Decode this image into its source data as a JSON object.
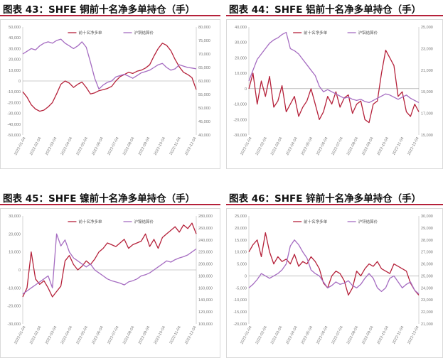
{
  "colors": {
    "net_long": "#b5213a",
    "price": "#a56cc1",
    "accent": "#b5213a"
  },
  "chart_data": [
    {
      "type": "line",
      "title": "图表 43：SHFE 铜前十名净多单持仓（手）",
      "x_ticks": [
        "2022-01-04",
        "2022-02-04",
        "2022-03-04",
        "2022-04-04",
        "2022-05-04",
        "2022-06-04",
        "2022-07-04",
        "2022-08-04",
        "2022-09-04",
        "2022-10-04",
        "2022-11-04",
        "2022-12-04"
      ],
      "y_left_ticks": [
        "50,000",
        "40,000",
        "30,000",
        "20,000",
        "10,000",
        "0",
        "-10,000",
        "-20,000",
        "-30,000",
        "-40,000",
        "-50,000"
      ],
      "y_right_ticks": [
        "80,000",
        "75,000",
        "70,000",
        "65,000",
        "60,000",
        "55,000",
        "50,000",
        "45,000",
        "40,000"
      ],
      "ylim_left": [
        -50000,
        50000
      ],
      "ylim_right": [
        40000,
        80000
      ],
      "legend": [
        "前十名净多单",
        "沪铜结算价"
      ],
      "series": [
        {
          "name": "前十名净多单",
          "axis": "left",
          "values": [
            -10000,
            -15000,
            -22000,
            -26000,
            -28000,
            -27000,
            -24000,
            -20000,
            -12000,
            -3000,
            0,
            -2000,
            -6000,
            -3000,
            -1000,
            -6000,
            -12000,
            -11000,
            -9000,
            -8000,
            -7000,
            -5000,
            0,
            4000,
            6000,
            8000,
            7000,
            9000,
            10000,
            12000,
            15000,
            23000,
            30000,
            35000,
            33000,
            28000,
            20000,
            13000,
            8000,
            6000,
            3000,
            -8000
          ]
        },
        {
          "name": "沪铜结算价",
          "axis": "right",
          "values": [
            70000,
            71000,
            72000,
            71500,
            73000,
            74000,
            74500,
            74000,
            75000,
            75500,
            74000,
            73000,
            72000,
            73000,
            74500,
            72500,
            67000,
            61000,
            57000,
            58500,
            59500,
            60000,
            61500,
            62000,
            62500,
            61800,
            61000,
            62000,
            63000,
            63500,
            64000,
            65000,
            66000,
            66500,
            65000,
            64000,
            64500,
            66000,
            65500,
            65000,
            64800,
            64500
          ]
        }
      ]
    },
    {
      "type": "line",
      "title": "图表 44：SHFE 铝前十名净多单持仓（手）",
      "x_ticks": [
        "2022-01-04",
        "2022-02-04",
        "2022-03-04",
        "2022-04-04",
        "2022-05-04",
        "2022-06-04",
        "2022-07-04",
        "2022-08-04",
        "2022-09-04",
        "2022-10-04",
        "2022-11-04",
        "2022-12-04"
      ],
      "y_left_ticks": [
        "40,000",
        "30,000",
        "20,000",
        "10,000",
        "0",
        "-10,000",
        "-20,000",
        "-30,000"
      ],
      "y_right_ticks": [
        "25,000",
        "23,000",
        "21,000",
        "19,000",
        "17,000",
        "15,000"
      ],
      "ylim_left": [
        -30000,
        40000
      ],
      "ylim_right": [
        15000,
        25000
      ],
      "legend": [
        "前十名净多单",
        "沪铝结算价"
      ],
      "series": [
        {
          "name": "前十名净多单",
          "axis": "left",
          "values": [
            0,
            10000,
            -10000,
            5000,
            -5000,
            8000,
            -12000,
            -8000,
            2000,
            -15000,
            -10000,
            -5000,
            -18000,
            -12000,
            -8000,
            0,
            -10000,
            -20000,
            -15000,
            -5000,
            -10000,
            -2000,
            -12000,
            -6000,
            -4000,
            -16000,
            -10000,
            -8000,
            -20000,
            -22000,
            -10000,
            -8000,
            10000,
            25000,
            20000,
            15000,
            -5000,
            -2000,
            -15000,
            -18000,
            -10000,
            -15000
          ]
        },
        {
          "name": "沪铝结算价",
          "axis": "right",
          "values": [
            20000,
            21000,
            22000,
            22500,
            23000,
            23500,
            23800,
            24000,
            24300,
            24500,
            23000,
            22800,
            22500,
            22000,
            21500,
            21000,
            20500,
            19500,
            19000,
            19200,
            19000,
            18800,
            18600,
            18400,
            18500,
            18300,
            18200,
            18300,
            18100,
            18000,
            18200,
            18400,
            18600,
            18800,
            18700,
            18500,
            18300,
            18500,
            18700,
            18400,
            18200,
            18000
          ]
        }
      ]
    },
    {
      "type": "line",
      "title": "图表 45：SHFE 镍前十名净多单持仓（手）",
      "x_ticks": [
        "2022-01-04",
        "2022-02-04",
        "2022-03-04",
        "2022-04-04",
        "2022-05-04",
        "2022-06-04",
        "2022-07-04",
        "2022-08-04",
        "2022-09-04",
        "2022-10-04",
        "2022-11-04",
        "2022-12-04"
      ],
      "y_left_ticks": [
        "30,000",
        "20,000",
        "10,000",
        "0",
        "-10,000",
        "-20,000",
        "-30,000"
      ],
      "y_right_ticks": [
        "280,000",
        "260,000",
        "240,000",
        "220,000",
        "200,000",
        "180,000",
        "160,000",
        "140,000",
        "120,000",
        "100,000"
      ],
      "ylim_left": [
        -30000,
        30000
      ],
      "ylim_right": [
        100000,
        280000
      ],
      "legend": [
        "前十名净多单",
        "沪镍结算价"
      ],
      "series": [
        {
          "name": "前十名净多单",
          "axis": "left",
          "values": [
            -15000,
            -10000,
            10000,
            -5000,
            -8000,
            -6000,
            -10000,
            -15000,
            -12000,
            -9000,
            5000,
            8000,
            3000,
            0,
            2000,
            5000,
            3000,
            6000,
            10000,
            12000,
            15000,
            14000,
            13000,
            15000,
            17000,
            12000,
            14000,
            15000,
            16000,
            20000,
            13000,
            17000,
            12000,
            18000,
            20000,
            22000,
            24000,
            21000,
            25000,
            23000,
            26000,
            20000
          ]
        },
        {
          "name": "沪镍结算价",
          "axis": "right",
          "values": [
            150000,
            155000,
            160000,
            165000,
            170000,
            175000,
            180000,
            160000,
            250000,
            230000,
            240000,
            220000,
            210000,
            205000,
            200000,
            195000,
            200000,
            190000,
            185000,
            180000,
            175000,
            172000,
            170000,
            168000,
            165000,
            170000,
            172000,
            175000,
            180000,
            182000,
            185000,
            190000,
            195000,
            200000,
            205000,
            203000,
            207000,
            210000,
            212000,
            215000,
            220000,
            225000
          ]
        }
      ]
    },
    {
      "type": "line",
      "title": "图表 46：SHFE 锌前十名净多单持仓（手）",
      "x_ticks": [
        "2022-01-04",
        "2022-02-04",
        "2022-03-04",
        "2022-04-04",
        "2022-05-04",
        "2022-06-04",
        "2022-07-04",
        "2022-08-04",
        "2022-09-04",
        "2022-10-04",
        "2022-11-04",
        "2022-12-04"
      ],
      "y_left_ticks": [
        "25,000",
        "20,000",
        "15,000",
        "10,000",
        "5,000",
        "0",
        "-5,000",
        "-10,000",
        "-15,000",
        "-20,000"
      ],
      "y_right_ticks": [
        "30,000",
        "29,000",
        "28,000",
        "27,000",
        "26,000",
        "25,000",
        "24,000",
        "23,000",
        "22,000",
        "21,000"
      ],
      "ylim_left": [
        -20000,
        25000
      ],
      "ylim_right": [
        21000,
        30000
      ],
      "legend": [
        "前十名净多单",
        "沪锌结算价"
      ],
      "series": [
        {
          "name": "前十名净多单",
          "axis": "left",
          "values": [
            10000,
            13000,
            15000,
            8000,
            18000,
            10000,
            5000,
            8000,
            6000,
            7000,
            5000,
            9000,
            4000,
            6000,
            5000,
            8000,
            6000,
            3000,
            -3000,
            -5000,
            0,
            2000,
            1000,
            -2000,
            -8000,
            -5000,
            2000,
            0,
            3000,
            5000,
            4000,
            6000,
            3000,
            2000,
            1000,
            5000,
            4000,
            3000,
            2000,
            -3000,
            -6000,
            -8000
          ]
        },
        {
          "name": "沪锌结算价",
          "axis": "right",
          "values": [
            24000,
            24300,
            24700,
            25200,
            25000,
            24800,
            25000,
            25200,
            25500,
            26000,
            27500,
            28000,
            27600,
            27000,
            26500,
            25500,
            25200,
            25000,
            24500,
            24000,
            24200,
            24500,
            24300,
            24400,
            24600,
            24200,
            24000,
            24300,
            24800,
            25200,
            24800,
            24000,
            23700,
            24000,
            24800,
            25000,
            24500,
            24000,
            24300,
            24500,
            23800,
            23500
          ]
        }
      ]
    }
  ]
}
